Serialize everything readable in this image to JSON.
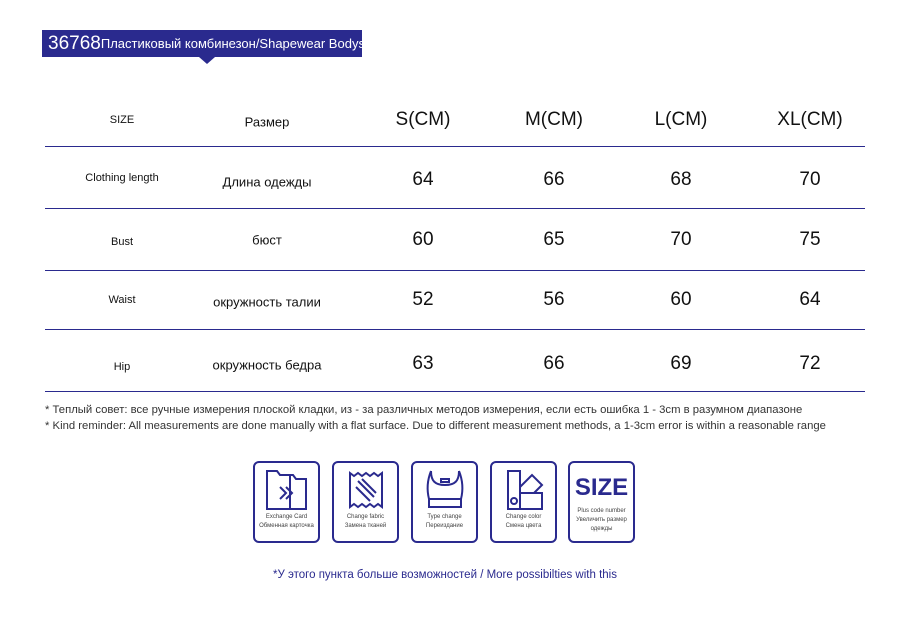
{
  "banner": {
    "code": "36768",
    "name": "Пластиковый комбинезон/Shapewear Bodysuit"
  },
  "table": {
    "headers": [
      "SIZE",
      "Размер",
      "S(CM)",
      "M(CM)",
      "L(CM)",
      "XL(CM)"
    ],
    "rows": [
      {
        "en": "Clothing length",
        "ru": "Длина одежды",
        "values": [
          "64",
          "66",
          "68",
          "70"
        ]
      },
      {
        "en": "Bust",
        "ru": "бюст",
        "values": [
          "60",
          "65",
          "70",
          "75"
        ]
      },
      {
        "en": "Waist",
        "ru": "окружность талии",
        "values": [
          "52",
          "56",
          "60",
          "64"
        ]
      },
      {
        "en": "Hip",
        "ru": "окружность бедра",
        "values": [
          "63",
          "66",
          "69",
          "72"
        ]
      }
    ]
  },
  "notes": [
    "* Теплый совет: все ручные измерения плоской кладки, из - за различных методов измерения, если есть ошибка 1 - 3cm в разумном диапазоне",
    "* Kind reminder: All measurements are done manually with a flat surface. Due to different measurement methods, a 1-3cm error is within a reasonable range"
  ],
  "icons": [
    {
      "icon": "exchange-card-icon",
      "en": "Exchange Card",
      "ru": "Обменная карточка"
    },
    {
      "icon": "fabric-icon",
      "en": "Change fabric",
      "ru": "Замена тканей"
    },
    {
      "icon": "top-icon",
      "en": "Type change",
      "ru": "Переиздание"
    },
    {
      "icon": "color-swatch-icon",
      "en": "Change color",
      "ru": "Смена цвета"
    },
    {
      "icon": "size-icon",
      "word": "SIZE",
      "en": "Plus code number",
      "ru": "Увеличить размер одежды"
    }
  ],
  "footer": "*У этого пункта больше возможностей / More possibilties with this",
  "colors": {
    "accent": "#2a2a8e"
  }
}
